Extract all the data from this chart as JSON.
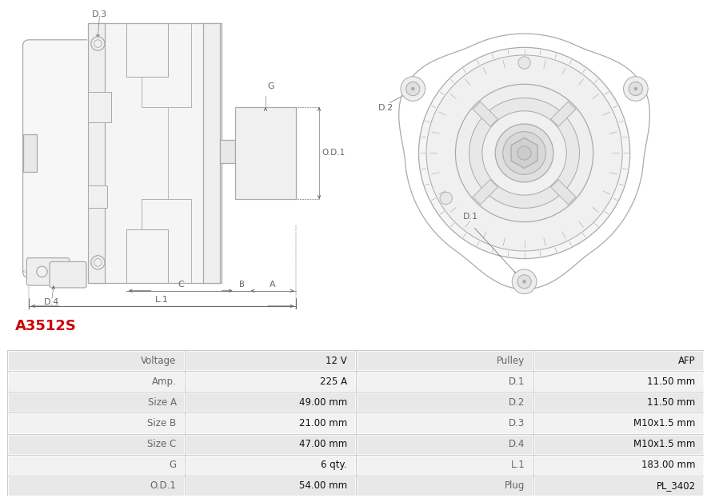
{
  "title": "A3512S",
  "title_color": "#cc0000",
  "bg_color": "#ffffff",
  "table_row_bg1": "#e8e8e8",
  "table_row_bg2": "#f2f2f2",
  "table_border_color": "#ffffff",
  "rows": [
    [
      "Voltage",
      "12 V",
      "Pulley",
      "AFP"
    ],
    [
      "Amp.",
      "225 A",
      "D.1",
      "11.50 mm"
    ],
    [
      "Size A",
      "49.00 mm",
      "D.2",
      "11.50 mm"
    ],
    [
      "Size B",
      "21.00 mm",
      "D.3",
      "M10x1.5 mm"
    ],
    [
      "Size C",
      "47.00 mm",
      "D.4",
      "M10x1.5 mm"
    ],
    [
      "G",
      "6 qty.",
      "L.1",
      "183.00 mm"
    ],
    [
      "O.D.1",
      "54.00 mm",
      "Plug",
      "PL_3402"
    ]
  ],
  "lc": "#aaaaaa",
  "dc": "#666666",
  "lw": 0.9
}
